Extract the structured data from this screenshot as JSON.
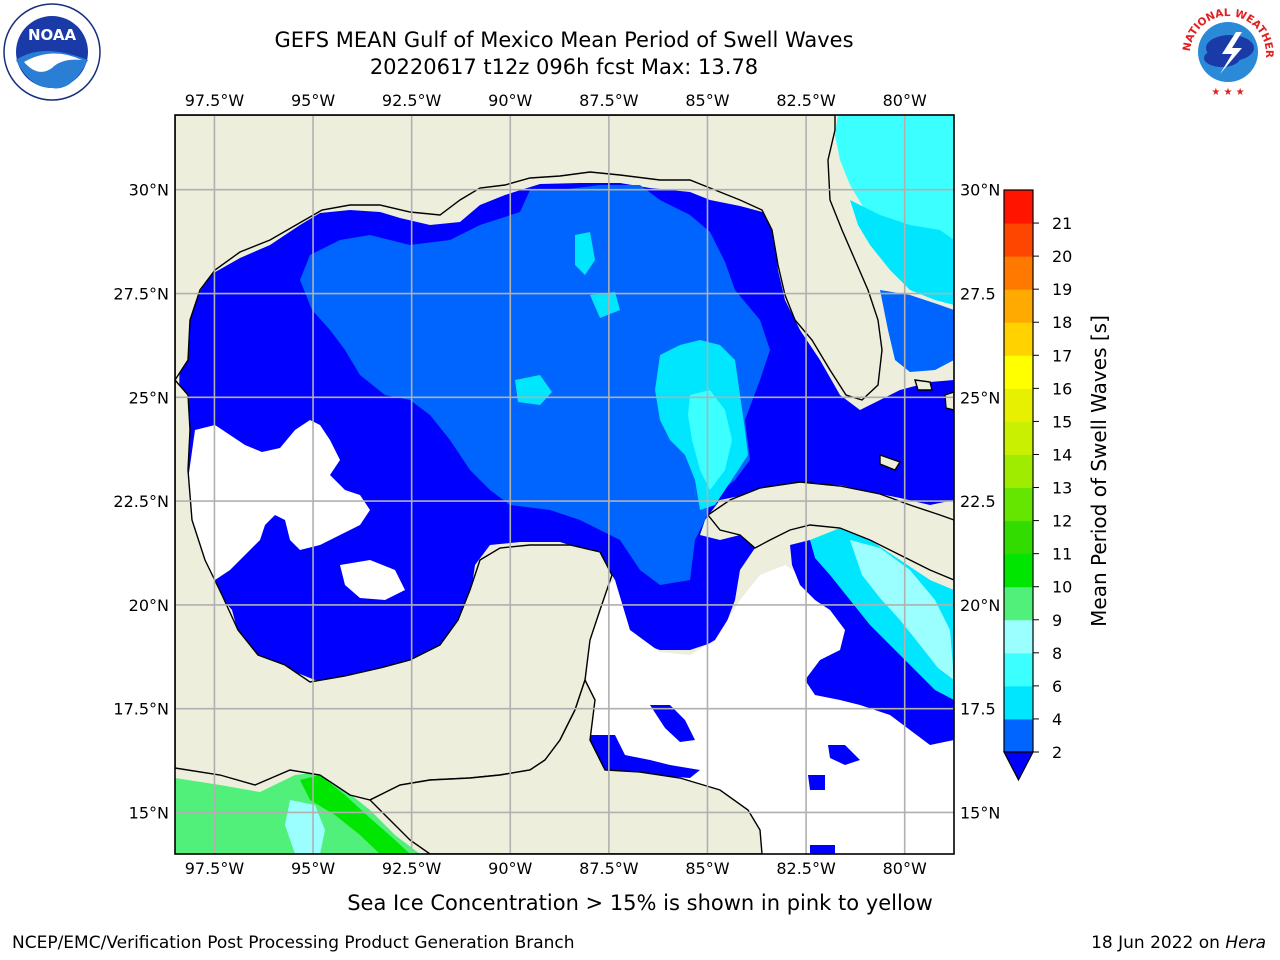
{
  "title": {
    "line1": "GEFS MEAN Gulf of Mexico Mean Period of Swell Waves",
    "line2": "20220617 t12z 096h fcst   Max: 13.78"
  },
  "logos": {
    "left": "NOAA",
    "right": "NATIONAL WEATHER SERVICE"
  },
  "map": {
    "lon_range": [
      -98.5,
      -78.75
    ],
    "lat_range": [
      14.0,
      31.8
    ],
    "land_color": "#eeeedd",
    "ocean_fill_note": "contoured swell period field",
    "lon_ticks_top": [
      "97.5°W",
      "95°W",
      "92.5°W",
      "90°W",
      "87.5°W",
      "85°W",
      "82.5°W",
      "80°W"
    ],
    "lon_ticks_bottom": [
      "97.5°W",
      "95°W",
      "92.5°W",
      "90°W",
      "87.5°W",
      "85°W",
      "82.5°W",
      "80°W"
    ],
    "lon_values": [
      -97.5,
      -95,
      -92.5,
      -90,
      -87.5,
      -85,
      -82.5,
      -80
    ],
    "lat_ticks_left": [
      "30°N",
      "27.5°N",
      "25°N",
      "22.5°N",
      "20°N",
      "17.5°N",
      "15°N"
    ],
    "lat_ticks_right": [
      "30°N",
      "27.5",
      "25°N",
      "22.5",
      "20°N",
      "17.5",
      "15°N"
    ],
    "lat_values": [
      30,
      27.5,
      25,
      22.5,
      20,
      17.5,
      15
    ],
    "grid": true
  },
  "colorbar": {
    "label": "Mean Period of Swell Waves [s]",
    "ticks": [
      "2",
      "4",
      "6",
      "8",
      "9",
      "10",
      "11",
      "12",
      "13",
      "14",
      "15",
      "16",
      "17",
      "18",
      "19",
      "20",
      "21"
    ],
    "colors": [
      "#0064ff",
      "#00e6ff",
      "#3cffff",
      "#9cffff",
      "#50f07a",
      "#00e600",
      "#32dc00",
      "#64e600",
      "#a0ec00",
      "#c8f000",
      "#e6f000",
      "#ffff00",
      "#ffd200",
      "#ffaa00",
      "#ff7800",
      "#ff4600",
      "#ff1400",
      "#e60000"
    ],
    "under_color": "#0000ff"
  },
  "chart_data": {
    "type": "heatmap",
    "title": "GEFS MEAN Gulf of Mexico Mean Period of Swell Waves",
    "subtitle": "20220617 t12z 096h fcst   Max: 13.78",
    "max": 13.78,
    "units": "s",
    "xlabel": "",
    "ylabel": "",
    "colorbar_label": "Mean Period of Swell Waves [s]"
  },
  "footer": {
    "note": "Sea Ice Concentration > 15% is shown in pink to yellow",
    "credit": "NCEP/EMC/Verification Post Processing Product Generation Branch",
    "date": "18 Jun 2022 on ",
    "machine": "Hera"
  }
}
